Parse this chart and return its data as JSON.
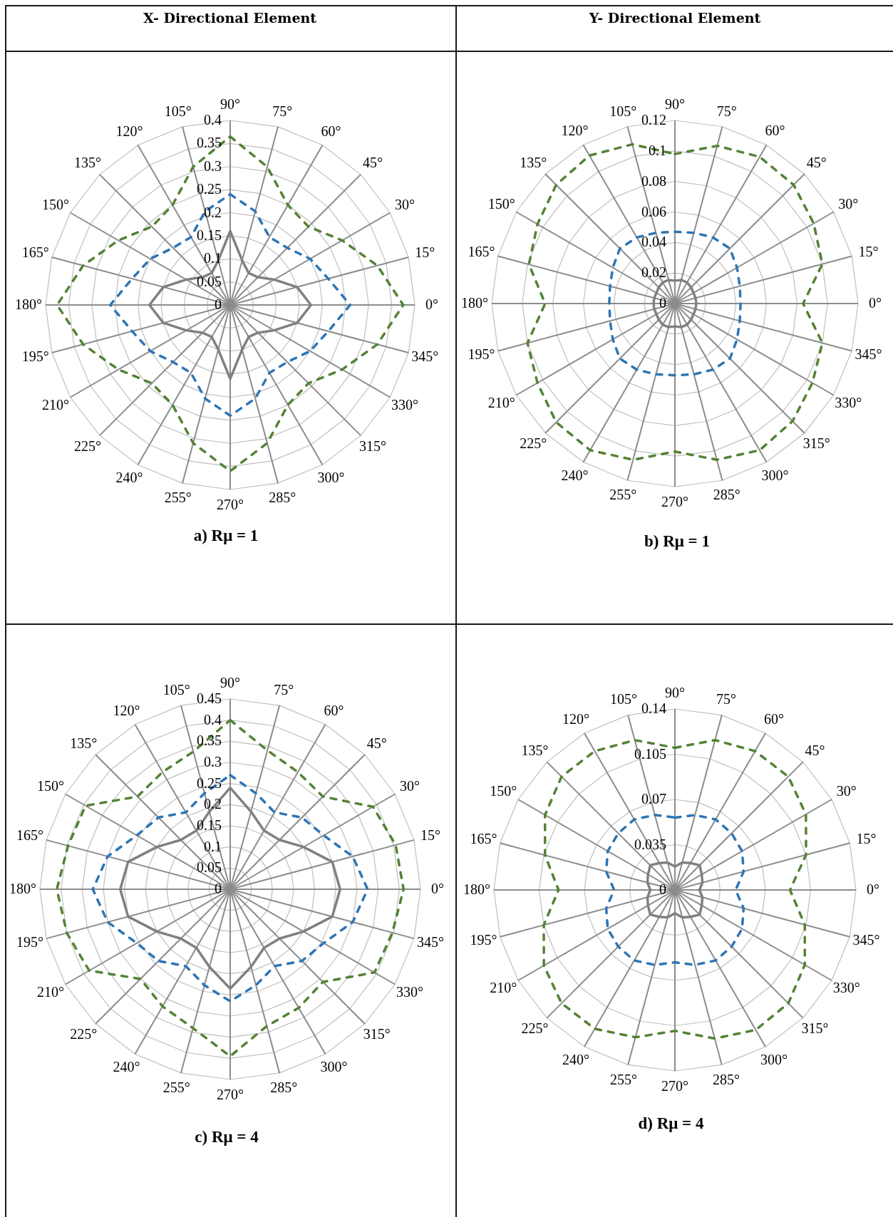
{
  "chart_data": [
    {
      "type": "radar",
      "title": "X- Directional Element",
      "annotations": [
        "a) Rμ = 1"
      ],
      "categories": [
        "90°",
        "75°",
        "60°",
        "45°",
        "30°",
        "15°",
        "0°",
        "345°",
        "330°",
        "315°",
        "300°",
        "285°",
        "270°",
        "255°",
        "240°",
        "225°",
        "210°",
        "195°",
        "180°",
        "165°",
        "150°",
        "135°",
        "120°",
        "105°"
      ],
      "ylim": [
        0,
        0.4
      ],
      "yticks": [
        0,
        0.05,
        0.1,
        0.15,
        0.2,
        0.25,
        0.3,
        0.35,
        0.4
      ],
      "grid": true,
      "series": [
        {
          "color": "#808080",
          "line_style": "solid",
          "values": [
            0.16,
            0.1,
            0.08,
            0.085,
            0.11,
            0.15,
            0.175,
            0.15,
            0.11,
            0.085,
            0.08,
            0.1,
            0.16,
            0.1,
            0.08,
            0.085,
            0.11,
            0.15,
            0.175,
            0.15,
            0.11,
            0.085,
            0.08,
            0.1
          ]
        },
        {
          "color": "#2e75b6",
          "line_style": "dashed",
          "values": [
            0.24,
            0.21,
            0.17,
            0.175,
            0.2,
            0.22,
            0.26,
            0.22,
            0.2,
            0.175,
            0.17,
            0.21,
            0.24,
            0.21,
            0.17,
            0.175,
            0.2,
            0.22,
            0.26,
            0.22,
            0.2,
            0.175,
            0.17,
            0.21
          ]
        },
        {
          "color": "#548235",
          "line_style": "dashed",
          "values": [
            0.365,
            0.31,
            0.25,
            0.24,
            0.28,
            0.33,
            0.375,
            0.33,
            0.28,
            0.24,
            0.25,
            0.31,
            0.36,
            0.31,
            0.25,
            0.24,
            0.28,
            0.33,
            0.375,
            0.33,
            0.28,
            0.24,
            0.25,
            0.31
          ]
        }
      ]
    },
    {
      "type": "radar",
      "title": "Y- Directional Element",
      "annotations": [
        "b) Rμ = 1"
      ],
      "categories": [
        "90°",
        "75°",
        "60°",
        "45°",
        "30°",
        "15°",
        "0°",
        "345°",
        "330°",
        "315°",
        "300°",
        "285°",
        "270°",
        "255°",
        "240°",
        "225°",
        "210°",
        "195°",
        "180°",
        "165°",
        "150°",
        "135°",
        "120°",
        "105°"
      ],
      "ylim": [
        0,
        0.12
      ],
      "yticks": [
        0,
        0.02,
        0.04,
        0.06,
        0.08,
        0.1,
        0.12
      ],
      "grid": true,
      "series": [
        {
          "color": "#808080",
          "line_style": "solid",
          "values": [
            0.015,
            0.016,
            0.016,
            0.015,
            0.014,
            0.014,
            0.014,
            0.014,
            0.014,
            0.015,
            0.016,
            0.016,
            0.015,
            0.016,
            0.016,
            0.015,
            0.014,
            0.014,
            0.014,
            0.014,
            0.014,
            0.015,
            0.016,
            0.016
          ]
        },
        {
          "color": "#2e75b6",
          "line_style": "dashed",
          "values": [
            0.047,
            0.048,
            0.05,
            0.051,
            0.047,
            0.044,
            0.043,
            0.044,
            0.047,
            0.051,
            0.05,
            0.048,
            0.047,
            0.048,
            0.05,
            0.051,
            0.047,
            0.044,
            0.043,
            0.044,
            0.047,
            0.051,
            0.05,
            0.048
          ]
        },
        {
          "color": "#548235",
          "line_style": "dashed",
          "values": [
            0.098,
            0.107,
            0.111,
            0.11,
            0.105,
            0.1,
            0.084,
            0.1,
            0.104,
            0.109,
            0.111,
            0.106,
            0.097,
            0.106,
            0.111,
            0.11,
            0.104,
            0.1,
            0.085,
            0.099,
            0.104,
            0.11,
            0.112,
            0.108
          ]
        }
      ]
    },
    {
      "type": "radar",
      "annotations": [
        "c) Rμ = 4"
      ],
      "categories": [
        "90°",
        "75°",
        "60°",
        "45°",
        "30°",
        "15°",
        "0°",
        "345°",
        "330°",
        "315°",
        "300°",
        "285°",
        "270°",
        "255°",
        "240°",
        "225°",
        "210°",
        "195°",
        "180°",
        "165°",
        "150°",
        "135°",
        "120°",
        "105°"
      ],
      "ylim": [
        0,
        0.45
      ],
      "yticks": [
        0,
        0.05,
        0.1,
        0.15,
        0.2,
        0.25,
        0.3,
        0.35,
        0.4,
        0.45
      ],
      "grid": true,
      "series": [
        {
          "color": "#808080",
          "line_style": "solid",
          "values": [
            0.24,
            0.19,
            0.16,
            0.165,
            0.2,
            0.25,
            0.26,
            0.25,
            0.2,
            0.165,
            0.16,
            0.19,
            0.235,
            0.19,
            0.16,
            0.165,
            0.2,
            0.25,
            0.26,
            0.25,
            0.2,
            0.165,
            0.16,
            0.19
          ]
        },
        {
          "color": "#2e75b6",
          "line_style": "dashed",
          "values": [
            0.27,
            0.235,
            0.21,
            0.24,
            0.255,
            0.3,
            0.325,
            0.3,
            0.255,
            0.24,
            0.21,
            0.235,
            0.265,
            0.235,
            0.21,
            0.24,
            0.255,
            0.3,
            0.325,
            0.3,
            0.255,
            0.24,
            0.21,
            0.235
          ]
        },
        {
          "color": "#548235",
          "line_style": "dashed",
          "values": [
            0.4,
            0.34,
            0.32,
            0.31,
            0.39,
            0.405,
            0.41,
            0.397,
            0.394,
            0.31,
            0.324,
            0.335,
            0.395,
            0.34,
            0.32,
            0.3,
            0.385,
            0.4,
            0.41,
            0.397,
            0.395,
            0.31,
            0.32,
            0.337
          ]
        }
      ]
    },
    {
      "type": "radar",
      "annotations": [
        "d) Rμ = 4"
      ],
      "categories": [
        "90°",
        "75°",
        "60°",
        "45°",
        "30°",
        "15°",
        "0°",
        "345°",
        "330°",
        "315°",
        "300°",
        "285°",
        "270°",
        "255°",
        "240°",
        "225°",
        "210°",
        "195°",
        "180°",
        "165°",
        "150°",
        "135°",
        "120°",
        "105°"
      ],
      "ylim": [
        0,
        0.14
      ],
      "yticks": [
        0,
        0.035,
        0.07,
        0.105,
        0.14
      ],
      "grid": true,
      "series": [
        {
          "color": "#808080",
          "line_style": "solid",
          "values": [
            0.018,
            0.022,
            0.024,
            0.027,
            0.024,
            0.022,
            0.019,
            0.022,
            0.024,
            0.027,
            0.024,
            0.022,
            0.018,
            0.022,
            0.024,
            0.027,
            0.024,
            0.022,
            0.019,
            0.022,
            0.024,
            0.027,
            0.024,
            0.022
          ]
        },
        {
          "color": "#2e75b6",
          "line_style": "dashed",
          "values": [
            0.056,
            0.06,
            0.063,
            0.062,
            0.06,
            0.055,
            0.047,
            0.055,
            0.06,
            0.062,
            0.063,
            0.06,
            0.056,
            0.06,
            0.063,
            0.062,
            0.06,
            0.055,
            0.047,
            0.055,
            0.06,
            0.062,
            0.063,
            0.06
          ]
        },
        {
          "color": "#548235",
          "line_style": "dashed",
          "values": [
            0.11,
            0.12,
            0.124,
            0.124,
            0.117,
            0.105,
            0.089,
            0.104,
            0.116,
            0.124,
            0.125,
            0.119,
            0.109,
            0.118,
            0.124,
            0.124,
            0.117,
            0.105,
            0.09,
            0.104,
            0.116,
            0.124,
            0.124,
            0.12
          ]
        }
      ]
    }
  ]
}
